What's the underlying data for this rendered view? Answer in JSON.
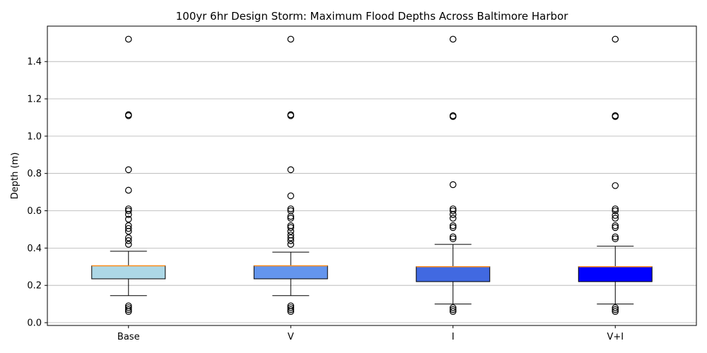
{
  "chart_data": {
    "type": "box",
    "title": "100yr 6hr Design Storm: Maximum Flood Depths Across Baltimore Harbor",
    "xlabel": "",
    "ylabel": "Depth (m)",
    "ylim": [
      -0.015,
      1.59
    ],
    "yticks": [
      "0.0",
      "0.2",
      "0.4",
      "0.6",
      "0.8",
      "1.0",
      "1.2",
      "1.4"
    ],
    "grid": "horizontal",
    "median_color": "#ff8c1a",
    "categories": [
      "Base",
      "V",
      "I",
      "V+I"
    ],
    "boxes": [
      {
        "label": "Base",
        "color": "#add8e6",
        "whisker_low": 0.145,
        "q1": 0.235,
        "median": 0.305,
        "q3": 0.305,
        "whisker_high": 0.383,
        "outliers": [
          0.06,
          0.07,
          0.08,
          0.09,
          0.42,
          0.44,
          0.455,
          0.49,
          0.505,
          0.52,
          0.555,
          0.58,
          0.6,
          0.61,
          0.71,
          0.82,
          1.11,
          1.115,
          1.52
        ]
      },
      {
        "label": "V",
        "color": "#6495ed",
        "whisker_low": 0.145,
        "q1": 0.235,
        "median": 0.305,
        "q3": 0.305,
        "whisker_high": 0.378,
        "outliers": [
          0.06,
          0.07,
          0.08,
          0.09,
          0.42,
          0.44,
          0.455,
          0.47,
          0.49,
          0.51,
          0.52,
          0.56,
          0.57,
          0.6,
          0.61,
          0.68,
          0.82,
          1.11,
          1.115,
          1.52
        ]
      },
      {
        "label": "I",
        "color": "#4169e1",
        "whisker_low": 0.1,
        "q1": 0.22,
        "median": 0.3,
        "q3": 0.3,
        "whisker_high": 0.42,
        "outliers": [
          0.06,
          0.07,
          0.08,
          0.45,
          0.46,
          0.51,
          0.52,
          0.56,
          0.58,
          0.6,
          0.61,
          0.74,
          1.105,
          1.11,
          1.52
        ]
      },
      {
        "label": "V+I",
        "color": "#0000ff",
        "whisker_low": 0.1,
        "q1": 0.22,
        "median": 0.3,
        "q3": 0.3,
        "whisker_high": 0.41,
        "outliers": [
          0.06,
          0.07,
          0.08,
          0.45,
          0.46,
          0.51,
          0.52,
          0.56,
          0.575,
          0.6,
          0.61,
          0.735,
          1.105,
          1.11,
          1.52
        ]
      }
    ]
  }
}
